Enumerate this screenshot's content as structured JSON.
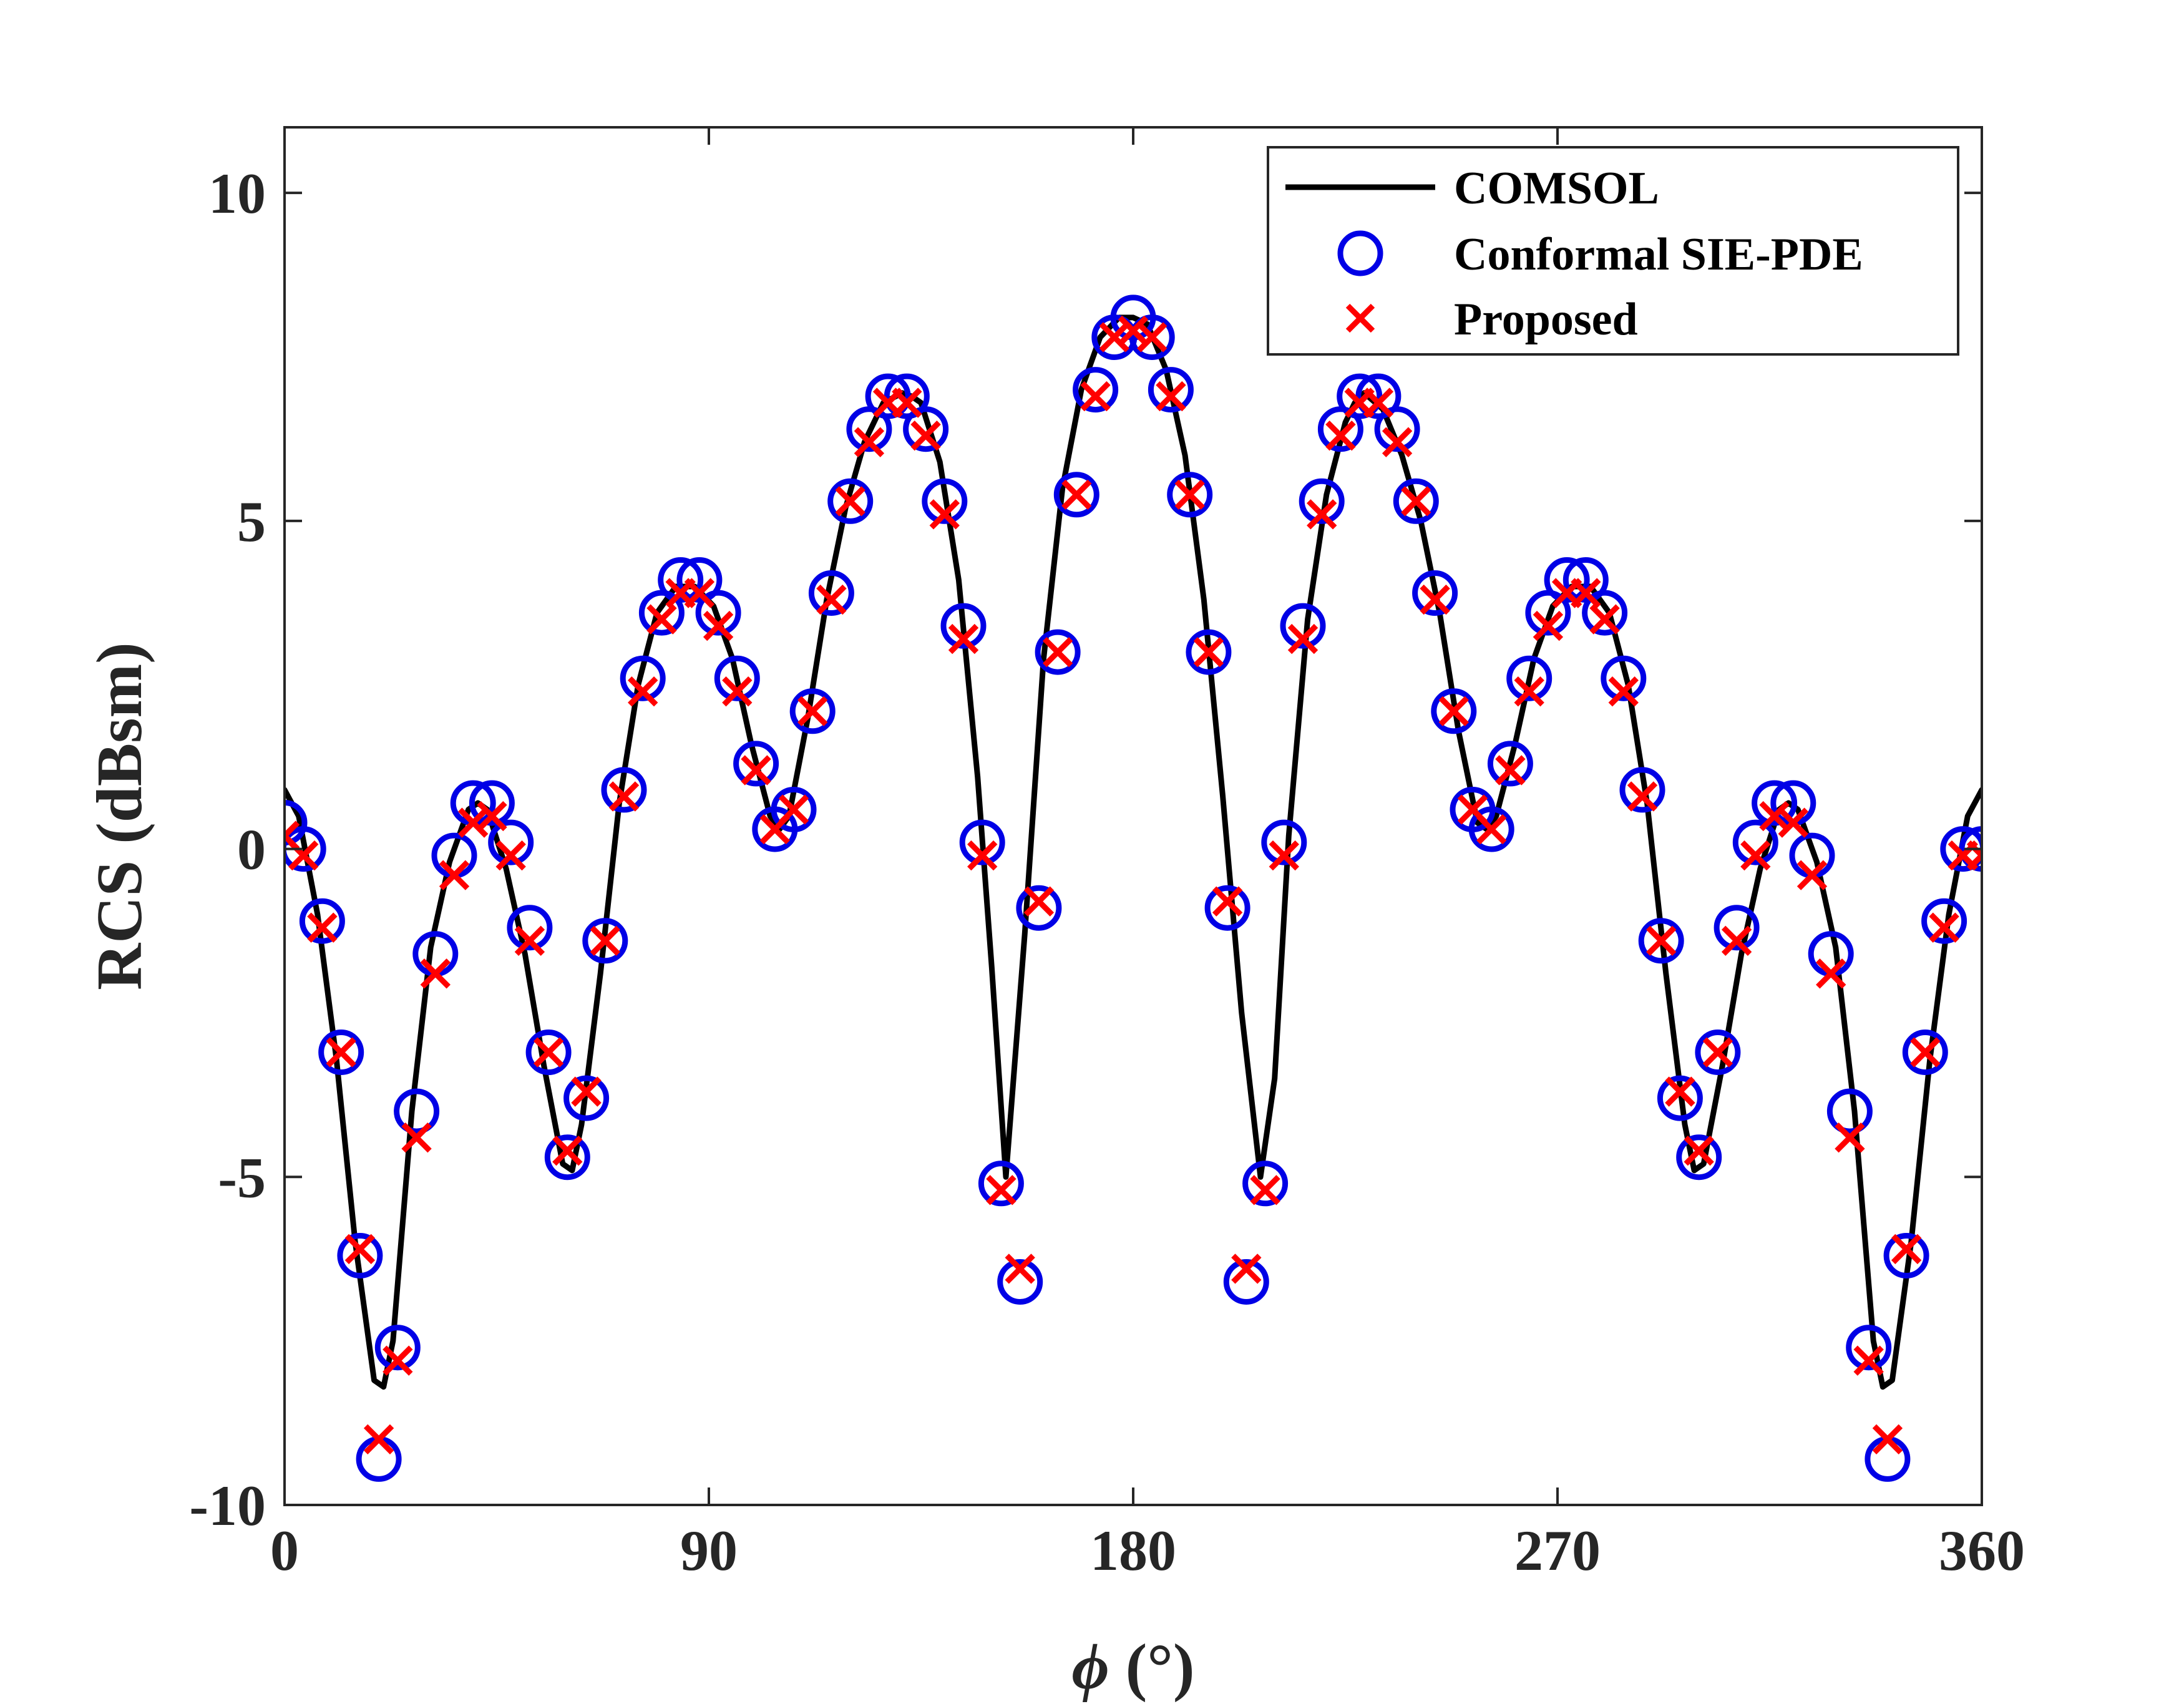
{
  "chart_data": {
    "type": "line",
    "xlabel_symbol": "ϕ",
    "xlabel_unit": "(°)",
    "ylabel": "RCS (dBsm)",
    "xlim": [
      0,
      360
    ],
    "ylim": [
      -10,
      11
    ],
    "xticks": [
      0,
      90,
      180,
      270,
      360
    ],
    "xtick_labels": [
      "0",
      "90",
      "180",
      "270",
      "360"
    ],
    "yticks": [
      -10,
      -5,
      0,
      5,
      10
    ],
    "ytick_labels": [
      "-10",
      "-5",
      "0",
      "5",
      "10"
    ],
    "grid": false,
    "legend_position": "top-right",
    "colors": {
      "comsol": "#000000",
      "sie": "#0000e6",
      "proposed": "#ff0000",
      "axis": "#262626"
    },
    "series": [
      {
        "name": "COMSOL",
        "style": "line",
        "x": [
          0,
          3,
          7,
          11,
          15,
          19,
          21,
          23,
          27,
          31,
          35,
          39,
          41,
          43,
          47,
          51,
          55,
          59,
          61,
          63,
          67,
          71,
          75,
          79,
          83,
          87,
          91,
          95,
          99,
          103,
          105,
          107,
          111,
          115,
          119,
          123,
          127,
          131,
          133,
          135,
          139,
          143,
          147,
          150,
          153,
          157,
          161,
          165,
          169,
          173,
          177,
          180,
          183,
          187,
          191,
          195,
          199,
          203,
          207,
          210,
          213,
          217,
          221,
          225,
          227,
          229,
          233,
          237,
          241,
          245,
          249,
          253,
          255,
          257,
          261,
          265,
          269,
          273,
          277,
          281,
          285,
          289,
          293,
          297,
          299,
          301,
          305,
          309,
          313,
          317,
          319,
          321,
          325,
          329,
          333,
          337,
          339,
          341,
          345,
          349,
          353,
          357,
          360
        ],
        "y": [
          0.9,
          0.5,
          -1.0,
          -3.2,
          -6.0,
          -8.1,
          -8.2,
          -7.5,
          -4.0,
          -1.5,
          -0.2,
          0.6,
          0.7,
          0.6,
          -0.3,
          -1.6,
          -3.3,
          -4.8,
          -4.9,
          -4.2,
          -1.9,
          0.7,
          2.5,
          3.6,
          4.0,
          4.0,
          3.7,
          2.9,
          1.6,
          0.5,
          0.3,
          0.5,
          2.0,
          3.8,
          5.2,
          6.2,
          6.8,
          6.95,
          6.9,
          6.8,
          5.9,
          4.1,
          1.1,
          -1.8,
          -5.0,
          -1.3,
          2.9,
          5.5,
          7.0,
          7.8,
          8.1,
          8.1,
          8.0,
          7.3,
          6.0,
          3.8,
          0.8,
          -2.5,
          -5.0,
          -3.5,
          0.2,
          3.5,
          5.4,
          6.5,
          6.8,
          6.95,
          6.7,
          6.0,
          5.0,
          3.6,
          1.8,
          0.4,
          0.3,
          0.5,
          1.6,
          2.9,
          3.7,
          4.0,
          4.0,
          3.6,
          2.5,
          0.7,
          -1.9,
          -4.2,
          -4.9,
          -4.8,
          -3.3,
          -1.6,
          -0.3,
          0.6,
          0.7,
          0.6,
          -0.2,
          -1.5,
          -4.0,
          -7.5,
          -8.2,
          -8.1,
          -6.0,
          -3.2,
          -1.0,
          0.5,
          0.9
        ]
      },
      {
        "name": "Conformal SIE-PDE",
        "style": "circle",
        "x": [
          0,
          4,
          8,
          12,
          16,
          20,
          24,
          28,
          32,
          36,
          40,
          44,
          48,
          52,
          56,
          60,
          64,
          68,
          72,
          76,
          80,
          84,
          88,
          92,
          96,
          100,
          104,
          108,
          112,
          116,
          120,
          124,
          128,
          132,
          136,
          140,
          144,
          148,
          152,
          156,
          160,
          164,
          168,
          172,
          176,
          180,
          184,
          188,
          192,
          196,
          200,
          204,
          208,
          212,
          216,
          220,
          224,
          228,
          232,
          236,
          240,
          244,
          248,
          252,
          256,
          260,
          264,
          268,
          272,
          276,
          280,
          284,
          288,
          292,
          296,
          300,
          304,
          308,
          312,
          316,
          320,
          324,
          328,
          332,
          336,
          340,
          344,
          348,
          352,
          356,
          360
        ],
        "y": [
          0.4,
          0.0,
          -1.1,
          -3.1,
          -6.2,
          -9.3,
          -7.6,
          -4.0,
          -1.6,
          -0.1,
          0.7,
          0.7,
          0.1,
          -1.2,
          -3.1,
          -4.7,
          -3.8,
          -1.4,
          0.9,
          2.6,
          3.6,
          4.1,
          4.1,
          3.6,
          2.6,
          1.3,
          0.3,
          0.6,
          2.1,
          3.9,
          5.3,
          6.4,
          6.9,
          6.9,
          6.4,
          5.3,
          3.4,
          0.1,
          -5.1,
          -6.6,
          -0.9,
          3.0,
          5.4,
          7.0,
          7.8,
          8.1,
          7.8,
          7.0,
          5.4,
          3.0,
          -0.9,
          -6.6,
          -5.1,
          0.1,
          3.4,
          5.3,
          6.4,
          6.9,
          6.9,
          6.4,
          5.3,
          3.9,
          2.1,
          0.6,
          0.3,
          1.3,
          2.6,
          3.6,
          4.1,
          4.1,
          3.6,
          2.6,
          0.9,
          -1.4,
          -3.8,
          -4.7,
          -3.1,
          -1.2,
          0.1,
          0.7,
          0.7,
          -0.1,
          -1.6,
          -4.0,
          -7.6,
          -9.3,
          -6.2,
          -3.1,
          -1.1,
          0.0,
          0.0
        ]
      },
      {
        "name": "Proposed",
        "style": "cross",
        "x": [
          0,
          4,
          8,
          12,
          16,
          20,
          24,
          28,
          32,
          36,
          40,
          44,
          48,
          52,
          56,
          60,
          64,
          68,
          72,
          76,
          80,
          84,
          88,
          92,
          96,
          100,
          104,
          108,
          112,
          116,
          120,
          124,
          128,
          132,
          136,
          140,
          144,
          148,
          152,
          156,
          160,
          164,
          168,
          172,
          176,
          180,
          184,
          188,
          192,
          196,
          200,
          204,
          208,
          212,
          216,
          220,
          224,
          228,
          232,
          236,
          240,
          244,
          248,
          252,
          256,
          260,
          264,
          268,
          272,
          276,
          280,
          284,
          288,
          292,
          296,
          300,
          304,
          308,
          312,
          316,
          320,
          324,
          328,
          332,
          336,
          340,
          344,
          348,
          352,
          356,
          360
        ],
        "y": [
          0.2,
          -0.1,
          -1.2,
          -3.1,
          -6.1,
          -9.0,
          -7.8,
          -4.4,
          -1.9,
          -0.4,
          0.4,
          0.5,
          -0.1,
          -1.4,
          -3.1,
          -4.6,
          -3.7,
          -1.4,
          0.8,
          2.4,
          3.5,
          3.9,
          3.9,
          3.4,
          2.4,
          1.2,
          0.3,
          0.6,
          2.1,
          3.8,
          5.3,
          6.2,
          6.8,
          6.8,
          6.3,
          5.1,
          3.2,
          -0.1,
          -5.2,
          -6.4,
          -0.8,
          3.0,
          5.4,
          6.9,
          7.8,
          7.9,
          7.8,
          6.9,
          5.4,
          3.0,
          -0.8,
          -6.4,
          -5.2,
          -0.1,
          3.2,
          5.1,
          6.3,
          6.8,
          6.8,
          6.2,
          5.3,
          3.8,
          2.1,
          0.6,
          0.3,
          1.2,
          2.4,
          3.4,
          3.9,
          3.9,
          3.5,
          2.4,
          0.8,
          -1.4,
          -3.7,
          -4.6,
          -3.1,
          -1.4,
          -0.1,
          0.5,
          0.4,
          -0.4,
          -1.9,
          -4.4,
          -7.8,
          -9.0,
          -6.1,
          -3.1,
          -1.2,
          -0.1,
          -0.1
        ]
      }
    ]
  }
}
